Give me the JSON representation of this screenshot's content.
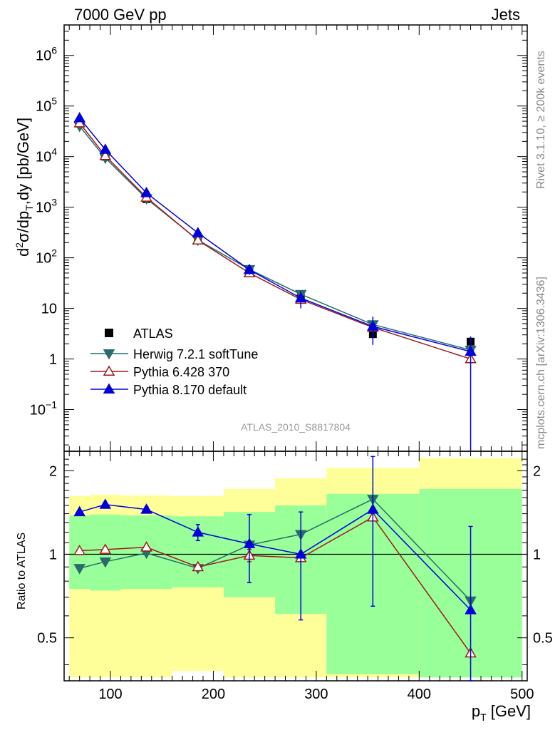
{
  "header": {
    "left": "7000 GeV pp",
    "right": "Jets"
  },
  "side_labels": {
    "rivet": "Rivet 3.1.10, ≥ 200k events",
    "mcplots": "mcplots.cern.ch [arXiv:1306.3436]"
  },
  "watermark": "ATLAS_2010_S8817804",
  "axis": {
    "main_ylabel": "d²σ/dp_T,dy [pb/GeV]",
    "ratio_ylabel": "Ratio to ATLAS",
    "xlabel": "p_T [GeV]"
  },
  "chart_data": {
    "type": "scatter",
    "x": [
      70,
      95,
      135,
      185,
      235,
      285,
      355,
      450
    ],
    "main": {
      "yscale": "log",
      "ylim": [
        0.015,
        4000000
      ],
      "yticks": [
        {
          "v": 0.1,
          "label": "10",
          "sup": "−1"
        },
        {
          "v": 1,
          "label": "1"
        },
        {
          "v": 10,
          "label": "10"
        },
        {
          "v": 100,
          "label": "10",
          "sup": "2"
        },
        {
          "v": 1000,
          "label": "10",
          "sup": "3"
        },
        {
          "v": 10000,
          "label": "10",
          "sup": "4"
        },
        {
          "v": 100000,
          "label": "10",
          "sup": "5"
        },
        {
          "v": 1000000,
          "label": "10",
          "sup": "6"
        }
      ]
    },
    "ratio": {
      "ylim": [
        0.35,
        2.35
      ],
      "yticks": [
        0.5,
        1,
        2
      ],
      "reference": 1
    },
    "xlim": [
      55,
      505
    ],
    "xticks": [
      100,
      200,
      300,
      400,
      500
    ],
    "legend": {
      "position": "lower-left"
    },
    "data": {
      "name": "ATLAS",
      "values": [
        45000,
        10000,
        1450,
        250,
        55,
        16,
        3.1,
        2.2
      ],
      "err_lo": [
        0,
        0,
        0,
        0,
        0,
        0,
        0,
        0
      ],
      "err_hi": [
        0,
        0,
        0,
        0,
        0,
        0,
        0,
        0
      ]
    },
    "bands": [
      {
        "xlo": 60,
        "xhi": 80,
        "y_lo": 0.36,
        "y_hi": 1.62,
        "g_lo": 0.75,
        "g_hi": 1.38
      },
      {
        "xlo": 80,
        "xhi": 110,
        "y_lo": 0.36,
        "y_hi": 1.64,
        "g_lo": 0.74,
        "g_hi": 1.39
      },
      {
        "xlo": 110,
        "xhi": 160,
        "y_lo": 0.36,
        "y_hi": 1.63,
        "g_lo": 0.75,
        "g_hi": 1.38
      },
      {
        "xlo": 160,
        "xhi": 210,
        "y_lo": 0.38,
        "y_hi": 1.62,
        "g_lo": 0.76,
        "g_hi": 1.37
      },
      {
        "xlo": 210,
        "xhi": 260,
        "y_lo": 0.36,
        "y_hi": 1.72,
        "g_lo": 0.7,
        "g_hi": 1.42
      },
      {
        "xlo": 260,
        "xhi": 310,
        "y_lo": 0.36,
        "y_hi": 1.88,
        "g_lo": 0.61,
        "g_hi": 1.5
      },
      {
        "xlo": 310,
        "xhi": 400,
        "y_lo": 0.36,
        "y_hi": 2.05,
        "g_lo": 0.37,
        "g_hi": 1.65
      },
      {
        "xlo": 400,
        "xhi": 500,
        "y_lo": 0.36,
        "y_hi": 2.22,
        "g_lo": 0.36,
        "g_hi": 1.72
      }
    ],
    "series": [
      {
        "name": "Herwig 7.2.1 softTune",
        "color": "#2a6b6b",
        "marker": "triangle-down",
        "values": [
          40000,
          9400,
          1480,
          225,
          59,
          19,
          4.8,
          1.5
        ],
        "ratio": [
          0.89,
          0.94,
          1.01,
          0.89,
          1.08,
          1.18,
          1.58,
          0.68
        ],
        "err": [
          0,
          0,
          0,
          0,
          0,
          0,
          0,
          0
        ],
        "main_err": [
          0,
          0,
          0,
          0,
          0,
          0,
          0,
          0
        ]
      },
      {
        "name": "Pythia 6.428 370",
        "color": "#9b1c1c",
        "marker": "triangle-open",
        "values": [
          46000,
          10400,
          1560,
          222,
          50,
          15,
          4.2,
          1.0
        ],
        "ratio": [
          1.03,
          1.04,
          1.06,
          0.9,
          0.99,
          0.97,
          1.36,
          0.44
        ],
        "err": [
          0,
          0,
          0,
          0,
          0.05,
          0,
          0,
          0
        ],
        "main_err": [
          0,
          0,
          0,
          0,
          0,
          0,
          0,
          0
        ]
      },
      {
        "name": "Pythia 8.170 default",
        "color": "#0000dd",
        "marker": "triangle-up",
        "values": [
          58000,
          13800,
          1920,
          310,
          58,
          16,
          4.4,
          1.4
        ],
        "ratio": [
          1.42,
          1.51,
          1.45,
          1.2,
          1.09,
          1.0,
          1.45,
          0.63
        ],
        "err": [
          0,
          0,
          0.03,
          0.08,
          0.3,
          0.42,
          0.8,
          0.63
        ],
        "main_err": [
          0,
          0,
          0,
          0,
          12,
          6,
          2.5,
          1.4
        ]
      }
    ]
  }
}
